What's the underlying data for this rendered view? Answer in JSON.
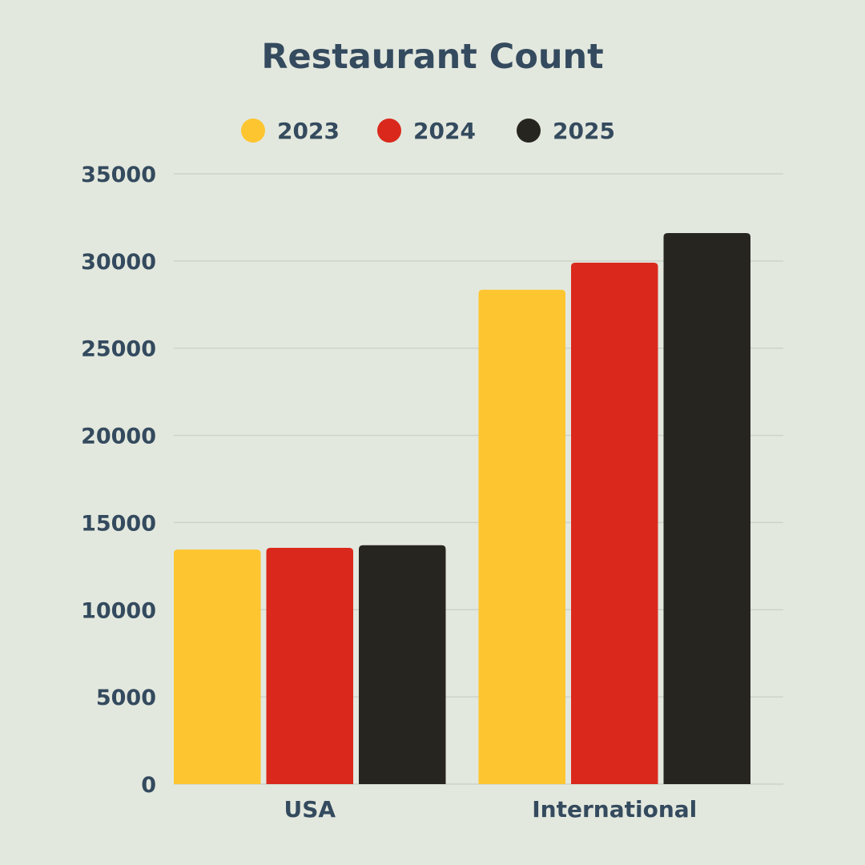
{
  "chart_data": {
    "type": "bar",
    "title": "Restaurant Count",
    "xlabel": "",
    "ylabel": "",
    "categories": [
      "USA",
      "International"
    ],
    "series": [
      {
        "name": "2023",
        "color": "#fdc52f",
        "values": [
          13450,
          28350
        ]
      },
      {
        "name": "2024",
        "color": "#da291c",
        "values": [
          13550,
          29900
        ]
      },
      {
        "name": "2025",
        "color": "#27251f",
        "values": [
          13700,
          31600
        ]
      }
    ],
    "ylim": [
      0,
      35000
    ],
    "yticks": [
      0,
      5000,
      10000,
      15000,
      20000,
      25000,
      30000,
      35000
    ],
    "grid": true,
    "legend_position": "top-center"
  }
}
